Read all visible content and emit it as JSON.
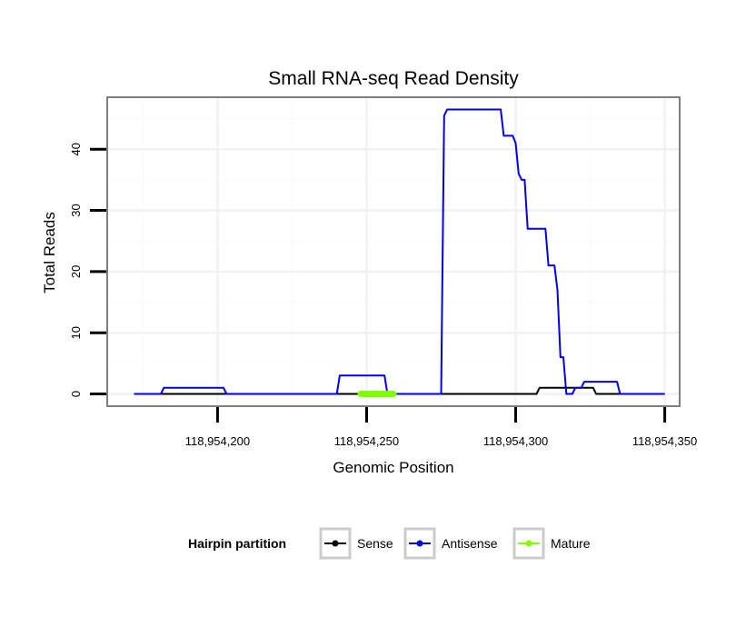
{
  "chart_data": {
    "type": "line",
    "title": "Small RNA-seq Read Density",
    "xlabel": "Genomic Position",
    "ylabel": "Total Reads",
    "xlim": [
      118954163,
      118954355
    ],
    "ylim": [
      -2,
      48.5
    ],
    "x_ticks": [
      118954200,
      118954250,
      118954300,
      118954350
    ],
    "x_tick_labels": [
      "118,954,200",
      "118,954,250",
      "118,954,300",
      "118,954,350"
    ],
    "y_ticks": [
      0,
      10,
      20,
      30,
      40
    ],
    "y_tick_labels": [
      "0",
      "10",
      "20",
      "30",
      "40"
    ],
    "grid": true,
    "legend": {
      "title": "Hairpin partition",
      "position": "bottom",
      "entries": [
        "Sense",
        "Antisense",
        "Mature"
      ]
    },
    "series": [
      {
        "name": "Sense",
        "color": "#000000",
        "width": 2,
        "points": [
          [
            118954172,
            0
          ],
          [
            118954307,
            0
          ],
          [
            118954308,
            1
          ],
          [
            118954326,
            1
          ],
          [
            118954327,
            0
          ],
          [
            118954350,
            0
          ]
        ]
      },
      {
        "name": "Antisense",
        "color": "#0000ee",
        "width": 2,
        "points": [
          [
            118954172,
            0
          ],
          [
            118954181,
            0
          ],
          [
            118954182,
            1
          ],
          [
            118954202,
            1
          ],
          [
            118954203,
            0
          ],
          [
            118954240,
            0
          ],
          [
            118954241,
            3
          ],
          [
            118954256,
            3
          ],
          [
            118954257,
            0
          ],
          [
            118954275,
            0
          ],
          [
            118954276,
            45.5
          ],
          [
            118954277,
            46.5
          ],
          [
            118954295,
            46.5
          ],
          [
            118954296,
            42.2
          ],
          [
            118954299,
            42.2
          ],
          [
            118954300,
            41
          ],
          [
            118954301,
            36
          ],
          [
            118954302,
            35
          ],
          [
            118954303,
            35
          ],
          [
            118954304,
            27
          ],
          [
            118954310,
            27
          ],
          [
            118954311,
            21
          ],
          [
            118954313,
            21
          ],
          [
            118954314,
            17
          ],
          [
            118954315,
            6
          ],
          [
            118954316,
            6
          ],
          [
            118954317,
            0
          ],
          [
            118954319,
            0
          ],
          [
            118954320,
            1
          ],
          [
            118954322,
            1
          ],
          [
            118954323,
            2
          ],
          [
            118954334,
            2
          ],
          [
            118954335,
            0
          ],
          [
            118954350,
            0
          ]
        ]
      },
      {
        "name": "Mature",
        "color": "#7fff00",
        "width": 7,
        "points": [
          [
            118954248,
            0
          ],
          [
            118954259,
            0
          ]
        ]
      }
    ]
  }
}
